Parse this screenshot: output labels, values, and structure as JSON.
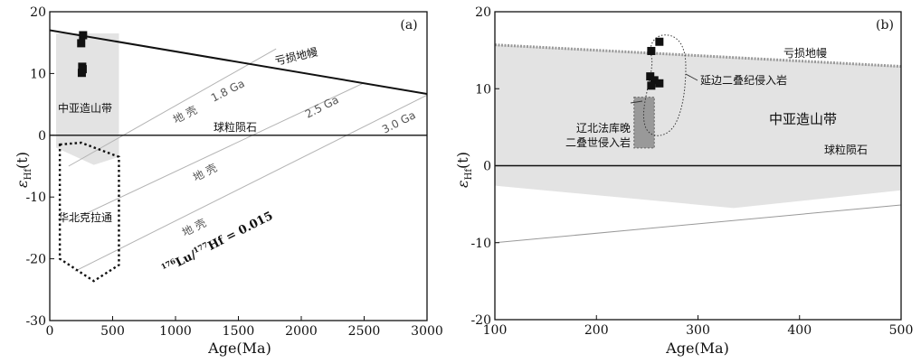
{
  "chart_data": [
    {
      "type": "scatter",
      "panel_label": "(a)",
      "xlabel": "Age(Ma)",
      "ylabel_main": "ε",
      "ylabel_sub": "Hf",
      "ylabel_arg": "(t)",
      "xlim": [
        0,
        3000
      ],
      "ylim": [
        -30,
        20
      ],
      "xticks": [
        0,
        500,
        1000,
        1500,
        2000,
        2500,
        3000
      ],
      "yticks": [
        -30,
        -20,
        -10,
        0,
        10,
        20
      ],
      "points": [
        {
          "x": 265,
          "y": 16.2
        },
        {
          "x": 250,
          "y": 14.9
        },
        {
          "x": 258,
          "y": 11.1
        },
        {
          "x": 262,
          "y": 10.7
        },
        {
          "x": 255,
          "y": 10.1
        }
      ],
      "depleted_mantle": {
        "label": "亏损地幔",
        "x": [
          0,
          3000
        ],
        "y": [
          17,
          6.7
        ]
      },
      "chur": {
        "label": "球粒陨石",
        "y": 0
      },
      "crust_lines": [
        {
          "label": "1.8 Ga",
          "x": [
            150,
            1800
          ],
          "y": [
            -5,
            14
          ]
        },
        {
          "label": "2.5 Ga",
          "x": [
            150,
            2500
          ],
          "y": [
            -14,
            8.5
          ]
        },
        {
          "label": "3.0 Ga",
          "x": [
            200,
            3000
          ],
          "y": [
            -22,
            6.5
          ]
        }
      ],
      "crust_label": "地 壳",
      "ratio_label": {
        "sup1": "176",
        "part1": "Lu/",
        "sup2": "177",
        "part2": "Hf = 0.015"
      },
      "field_caob": {
        "label": "中亚造山带",
        "x": [
          50,
          550,
          550,
          350,
          50
        ],
        "y": [
          16.5,
          16.5,
          -3.5,
          -4.8,
          -2
        ]
      },
      "field_ncc": {
        "label": "华北克拉通",
        "x": [
          80,
          250,
          550,
          550,
          350,
          80,
          80
        ],
        "y": [
          -1.5,
          -1.2,
          -3.5,
          -21,
          -23.6,
          -20,
          -1.5
        ]
      }
    },
    {
      "type": "scatter",
      "panel_label": "(b)",
      "xlabel": "Age(Ma)",
      "ylabel_main": "ε",
      "ylabel_sub": "Hf",
      "ylabel_arg": "(t)",
      "xlim": [
        100,
        500
      ],
      "ylim": [
        -20,
        20
      ],
      "xticks": [
        100,
        200,
        300,
        400,
        500
      ],
      "yticks": [
        -20,
        -10,
        0,
        10,
        20
      ],
      "points": [
        {
          "x": 262,
          "y": 16.1
        },
        {
          "x": 254,
          "y": 14.9
        },
        {
          "x": 253,
          "y": 11.6
        },
        {
          "x": 257,
          "y": 11.1
        },
        {
          "x": 262,
          "y": 10.7
        },
        {
          "x": 254,
          "y": 10.4
        }
      ],
      "depleted_mantle": {
        "label": "亏损地幔",
        "x": [
          100,
          500
        ],
        "y": [
          15.7,
          12.9
        ]
      },
      "chur": {
        "label": "球粒陨石",
        "y": 0
      },
      "crust_line": {
        "x": [
          100,
          500
        ],
        "y": [
          -10,
          -5.1
        ]
      },
      "field_caob": {
        "label": "中亚造山带",
        "x": [
          100,
          500,
          500,
          335,
          100
        ],
        "y": [
          15.7,
          12.9,
          -3.2,
          -5.5,
          -2.6
        ]
      },
      "liaobei_box": {
        "label_line1": "辽北法库晚",
        "label_line2": "二叠世侵入岩",
        "x": [
          237,
          257
        ],
        "y": [
          2.3,
          8.9
        ]
      },
      "yanbian_label": "延边二叠纪侵入岩"
    }
  ]
}
